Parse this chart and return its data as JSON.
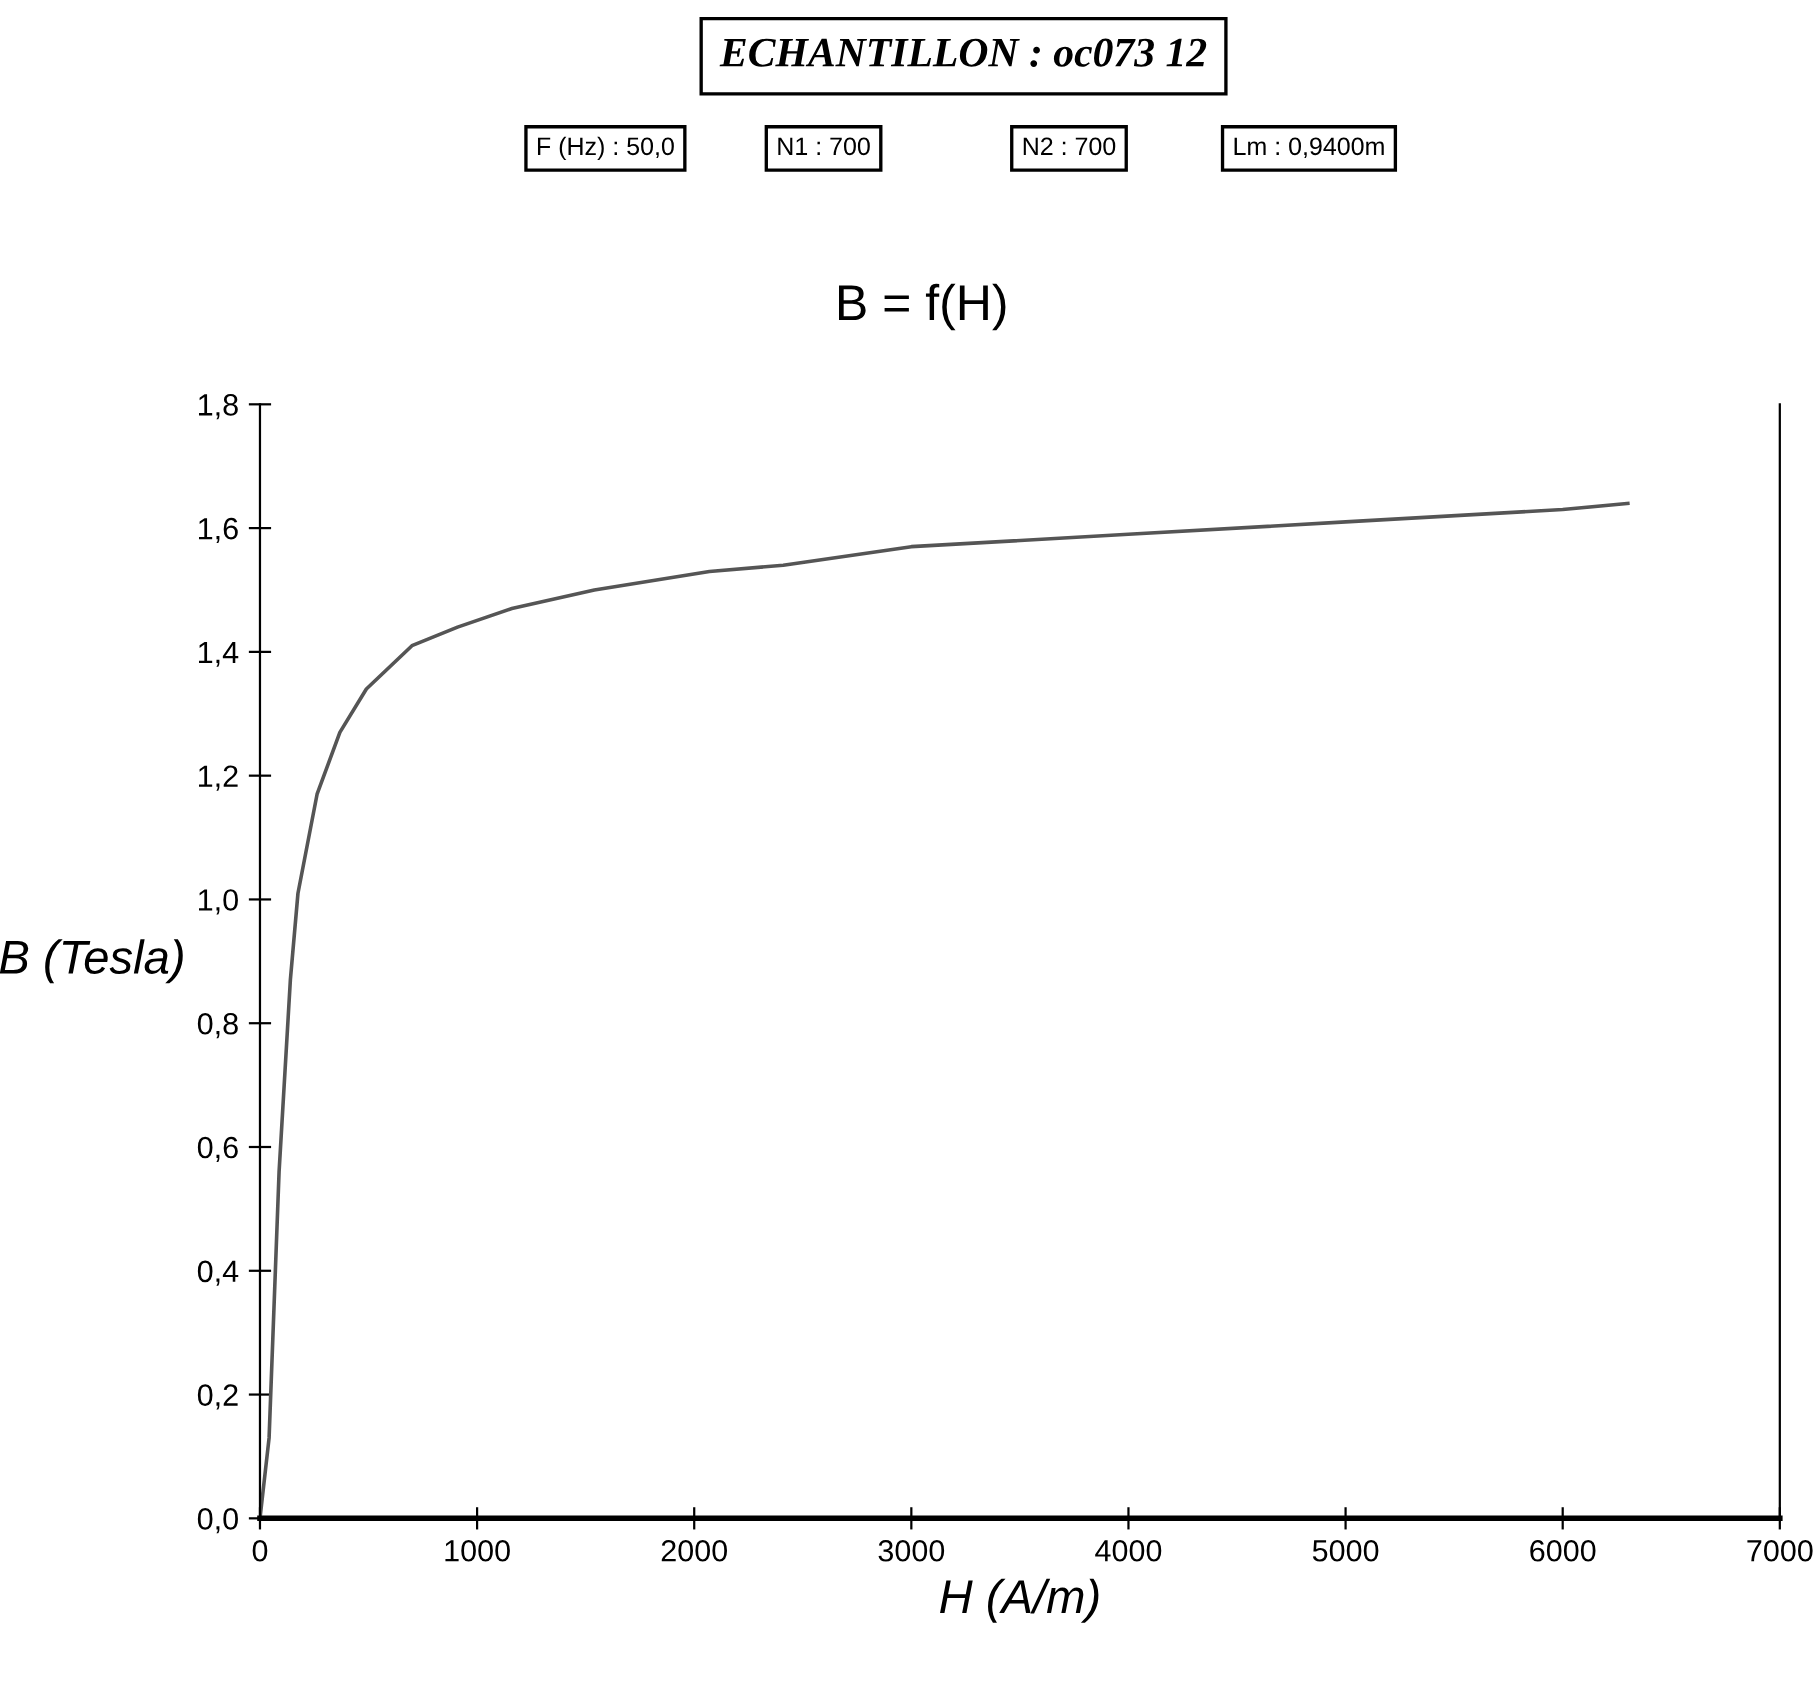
{
  "chart_data": {
    "type": "line",
    "title": "ECHANTILLON : oc073 12",
    "subtitle": "B = f(H)",
    "xlabel": "H (A/m)",
    "ylabel": "B (Tesla)",
    "annotations": [
      "F (Hz) : 50,0",
      "N1 : 700",
      "N2 : 700",
      "Lm : 0,9400m"
    ],
    "series": [
      {
        "color": "#555555",
        "x": [
          0,
          42,
          88,
          140,
          175,
          263,
          368,
          490,
          700,
          910,
          1160,
          1540,
          2070,
          2410,
          3000,
          4000,
          5000,
          6000,
          6300
        ],
        "values": [
          0,
          0.13,
          0.56,
          0.87,
          1.01,
          1.17,
          1.27,
          1.34,
          1.41,
          1.44,
          1.47,
          1.5,
          1.53,
          1.54,
          1.57,
          1.59,
          1.61,
          1.63,
          1.64
        ]
      }
    ],
    "xlim": [
      0,
      7000
    ],
    "xticks": [
      0,
      1000,
      2000,
      3000,
      4000,
      5000,
      6000,
      7000
    ],
    "ylim": [
      0,
      1.8
    ],
    "yticks": [
      {
        "value": 0,
        "label": "0,0"
      },
      {
        "value": 0.2,
        "label": "0,2"
      },
      {
        "value": 0.4,
        "label": "0,4"
      },
      {
        "value": 0.6,
        "label": "0,6"
      },
      {
        "value": 0.8,
        "label": "0,8"
      },
      {
        "value": 1.0,
        "label": "1,0"
      },
      {
        "value": 1.2,
        "label": "1,2"
      },
      {
        "value": 1.4,
        "label": "1,4"
      },
      {
        "value": 1.6,
        "label": "1,6"
      },
      {
        "value": 1.8,
        "label": "1,8"
      }
    ],
    "grid": false,
    "legend": false,
    "marker": "none",
    "line_style": "solid"
  }
}
